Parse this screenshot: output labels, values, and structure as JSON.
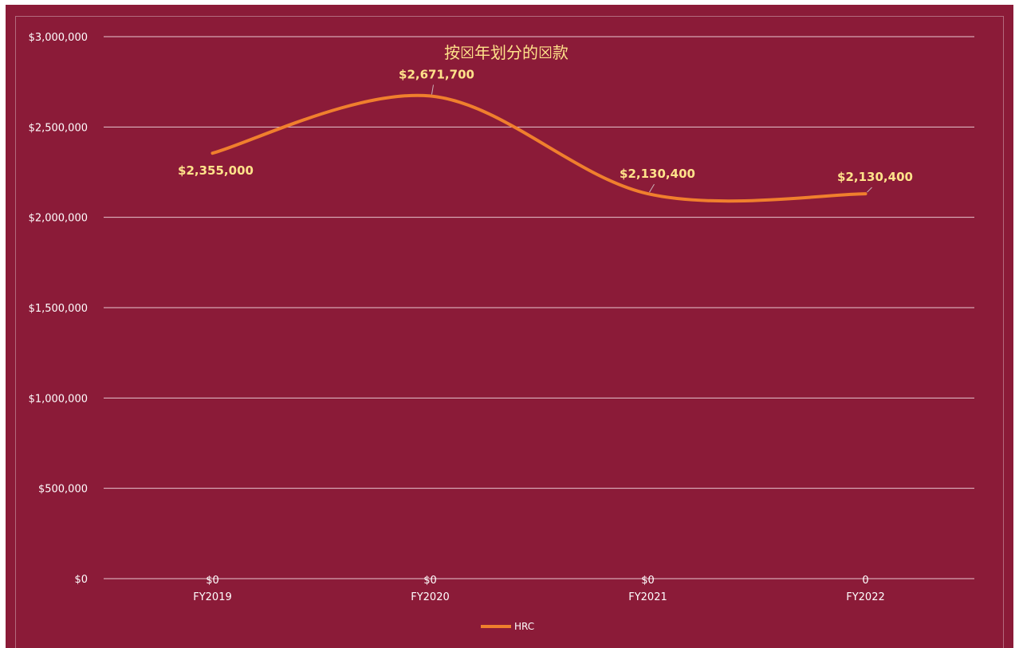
{
  "chart_data": {
    "type": "line",
    "title": "按☒年划分的☒款",
    "categories": [
      "FY2019",
      "FY2020",
      "FY2021",
      "FY2022"
    ],
    "series": [
      {
        "name": "HRC",
        "values": [
          2355000,
          2671700,
          2130400,
          2130400
        ],
        "data_labels": [
          "$2,355,000",
          "$2,671,700",
          "$2,130,400",
          "$2,130,400"
        ],
        "color": "#f07f2d"
      }
    ],
    "secondary_labels": [
      "$0",
      "$0",
      "$0",
      "0"
    ],
    "y_ticks": [
      "$0",
      "$500,000",
      "$1,000,000",
      "$1,500,000",
      "$2,000,000",
      "$2,500,000",
      "$3,000,000"
    ],
    "ylim": [
      0,
      3000000
    ],
    "grid": true,
    "smooth": true,
    "legend_position": "bottom",
    "colors": {
      "background": "#8b1b38",
      "label": "#ffe28a",
      "grid": "#e8c7cf"
    }
  }
}
